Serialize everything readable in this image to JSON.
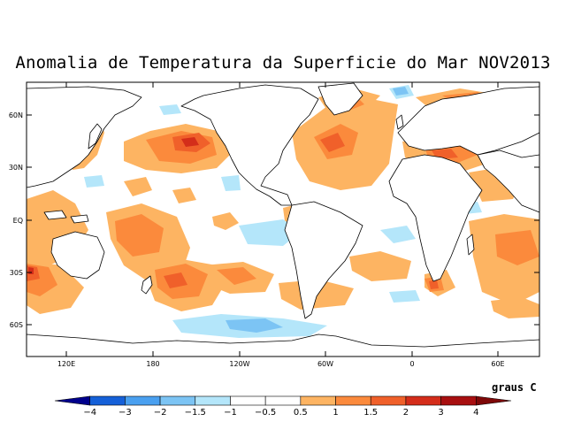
{
  "title": "Anomalia de Temperatura da Superficie do Mar NOV2013",
  "units_label": "graus C",
  "lat_labels": [
    "60N",
    "30N",
    "EQ",
    "30S",
    "60S"
  ],
  "lon_labels": [
    "120E",
    "180",
    "120W",
    "60W",
    "0",
    "60E"
  ],
  "colorbar": {
    "levels": [
      "-4",
      "-3",
      "-2",
      "-1.5",
      "-1",
      "-0.5",
      "0.5",
      "1",
      "1.5",
      "2",
      "3",
      "4"
    ],
    "colors": [
      "#00008c",
      "#1560d8",
      "#4aa0f0",
      "#7cc4f4",
      "#b4e6fa",
      "#ffffff",
      "#ffffff",
      "#fdb462",
      "#fb8a3c",
      "#f0602a",
      "#d42d1a",
      "#a80f10",
      "#7e0808"
    ]
  },
  "anomaly_colors": {
    "warm1": "#fdb462",
    "warm2": "#fb8a3c",
    "warm3": "#f0602a",
    "warm4": "#d42d1a",
    "cool1": "#b4e6fa",
    "cool2": "#7cc4f4",
    "cool3": "#4aa0f0"
  }
}
